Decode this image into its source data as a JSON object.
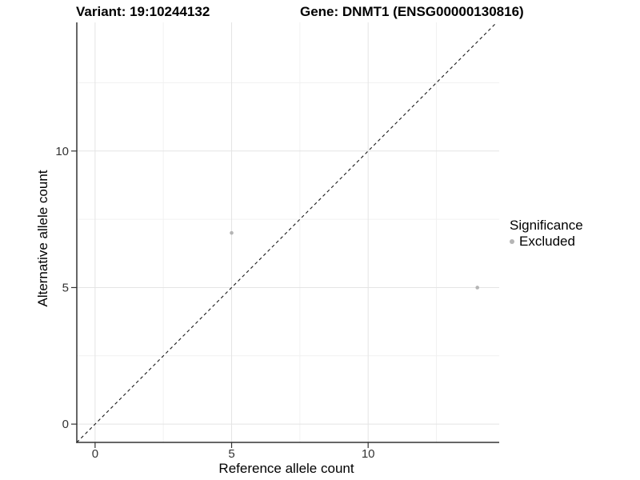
{
  "header": {
    "variant_title": "Variant: 19:10244132",
    "gene_title": "Gene: DNMT1 (ENSG00000130816)"
  },
  "chart_data": {
    "type": "scatter",
    "xlabel": "Reference allele count",
    "ylabel": "Alternative allele count",
    "xlim": [
      -0.67,
      14.8
    ],
    "ylim": [
      -0.67,
      14.71
    ],
    "xticks": [
      0,
      5,
      10
    ],
    "yticks": [
      0,
      5,
      10
    ],
    "x_minor_gridlines": [
      2.5,
      7.5,
      12.5
    ],
    "y_minor_gridlines": [
      2.5,
      7.5,
      12.5
    ],
    "grid": true,
    "points": [
      {
        "x": 5,
        "y": 7,
        "significance": "Excluded"
      },
      {
        "x": 14,
        "y": 5,
        "significance": "Excluded"
      }
    ],
    "reference_line": {
      "kind": "identity",
      "style": "dashed"
    },
    "legend": {
      "title": "Significance",
      "position": "right",
      "entries": [
        {
          "label": "Excluded",
          "color": "#b5b5b5"
        }
      ]
    }
  },
  "style": {
    "point_color": "#b5b5b5",
    "grid_major_color": "#e4e4e4",
    "grid_minor_color": "#f1f1f1",
    "axis_line_color": "#333333",
    "tick_color": "#333333",
    "tick_label_color": "#333333",
    "dash_line_color": "#1a1a1a",
    "background": "#ffffff"
  }
}
